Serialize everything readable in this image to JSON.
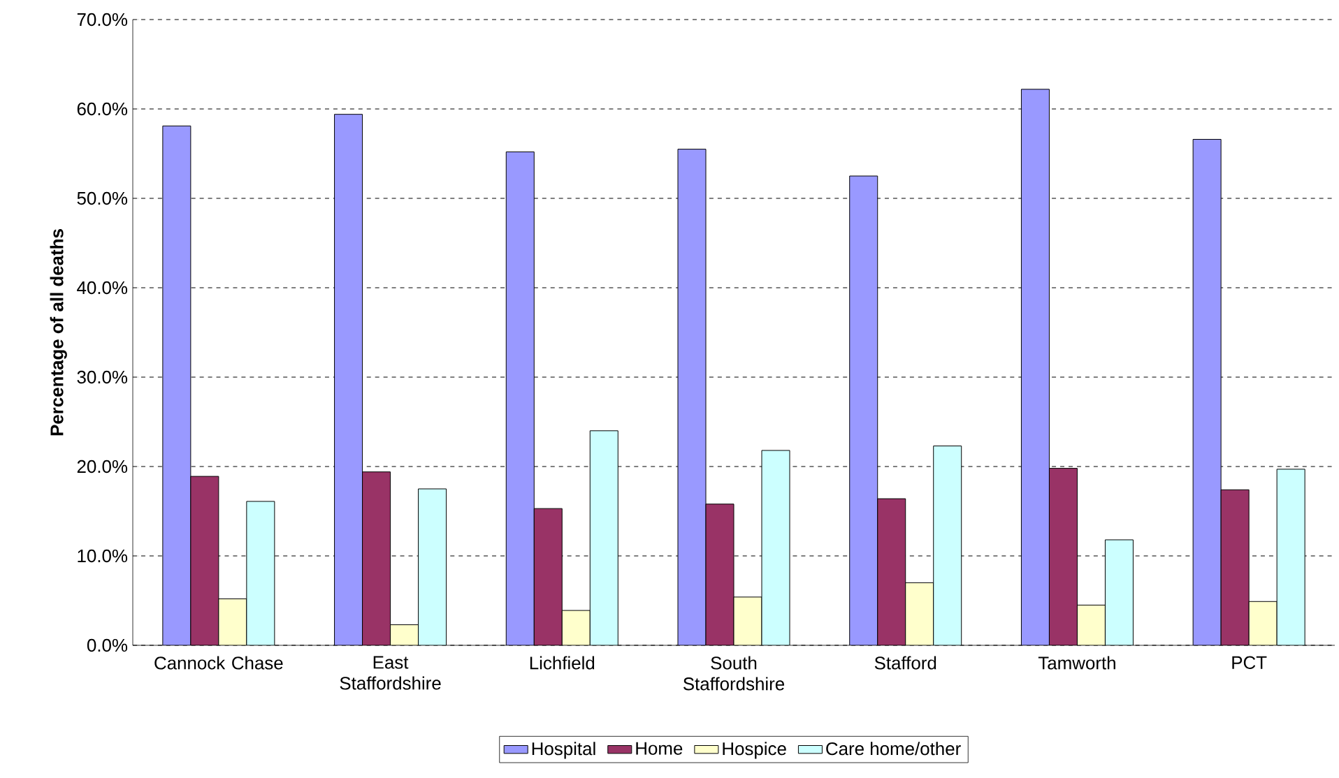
{
  "chart_data": {
    "type": "bar",
    "ylabel": "Percentage of all deaths",
    "categories": [
      "Cannock Chase",
      "East Staffordshire",
      "Lichfield",
      "South Staffordshire",
      "Stafford",
      "Tamworth",
      "PCT"
    ],
    "series": [
      {
        "name": "Hospital",
        "color": "#9999ff",
        "values": [
          58.1,
          59.4,
          55.2,
          55.5,
          52.5,
          62.2,
          56.6
        ]
      },
      {
        "name": "Home",
        "color": "#993366",
        "values": [
          18.9,
          19.4,
          15.3,
          15.8,
          16.4,
          19.8,
          17.4
        ]
      },
      {
        "name": "Hospice",
        "color": "#ffffcc",
        "values": [
          5.2,
          2.3,
          3.9,
          5.4,
          7.0,
          4.5,
          4.9
        ]
      },
      {
        "name": "Care home/other",
        "color": "#ccffff",
        "values": [
          16.1,
          17.5,
          24.0,
          21.8,
          22.3,
          11.8,
          19.7
        ]
      }
    ],
    "ylim": [
      0,
      70
    ],
    "yticks": [
      {
        "value": 0,
        "label": "0.0%"
      },
      {
        "value": 10,
        "label": "10.0%"
      },
      {
        "value": 20,
        "label": "20.0%"
      },
      {
        "value": 30,
        "label": "30.0%"
      },
      {
        "value": 40,
        "label": "40.0%"
      },
      {
        "value": 50,
        "label": "50.0%"
      },
      {
        "value": 60,
        "label": "60.0%"
      },
      {
        "value": 70,
        "label": "70.0%"
      }
    ],
    "grid": "y",
    "legend": "bottom"
  }
}
